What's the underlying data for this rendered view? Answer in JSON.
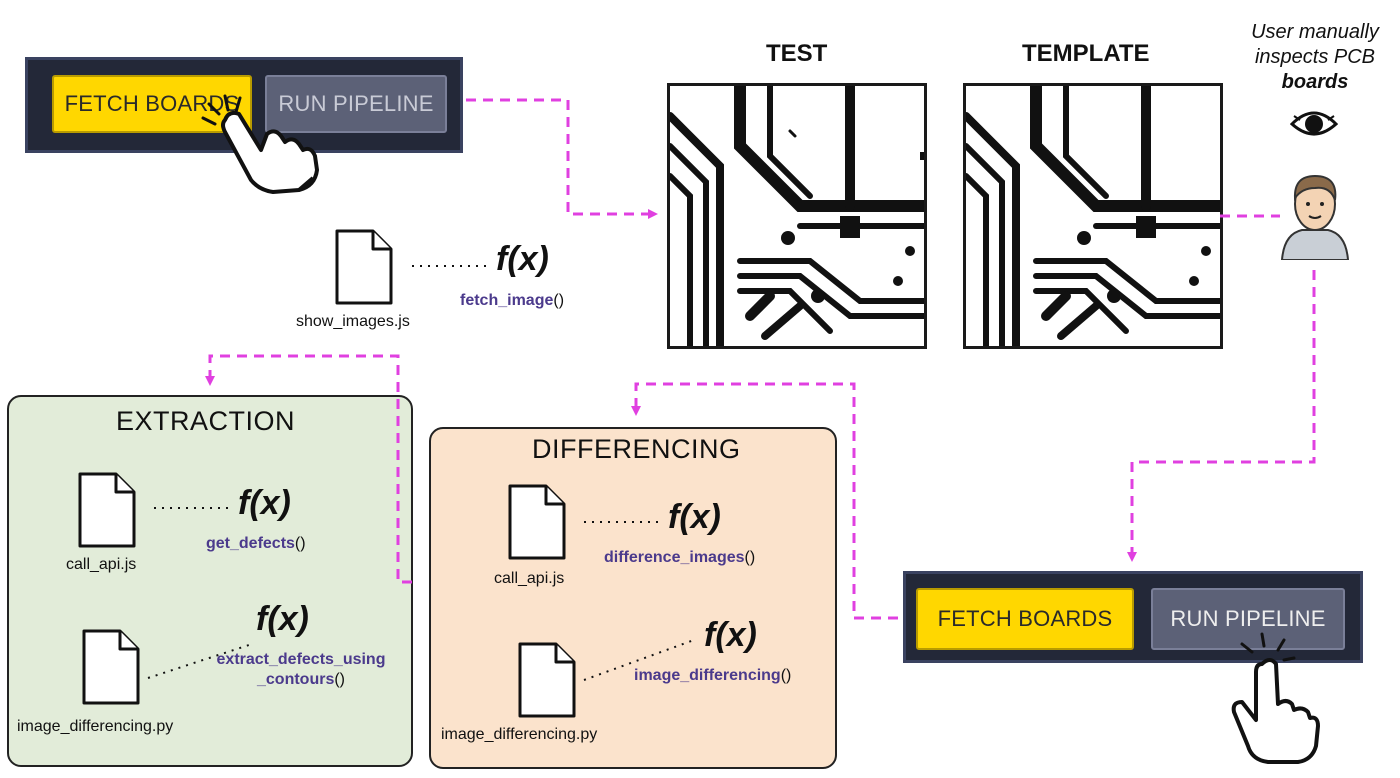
{
  "toolbar_top": {
    "fetch_label": "FETCH BOARDS",
    "run_label": "RUN PIPELINE"
  },
  "toolbar_bottom": {
    "fetch_label": "FETCH BOARDS",
    "run_label": "RUN PIPELINE"
  },
  "boards": {
    "test_title": "TEST",
    "template_title": "TEMPLATE"
  },
  "user_note": {
    "line1": "User manually",
    "line2": "inspects PCB",
    "line3": "boards"
  },
  "show_images": {
    "file": "show_images.js",
    "fx": "f(x)",
    "func": "fetch_image",
    "paren": "()"
  },
  "extraction": {
    "title": "EXTRACTION",
    "file1": "call_api.js",
    "fx1": "f(x)",
    "func1": "get_defects",
    "paren1": "()",
    "file2": "image_differencing.py",
    "fx2": "f(x)",
    "func2_line1": "extract_defects_using",
    "func2_line2": "_contours",
    "paren2": "()"
  },
  "differencing": {
    "title": "DIFFERENCING",
    "file1": "call_api.js",
    "fx1": "f(x)",
    "func1": "difference_images",
    "paren1": "()",
    "file2": "image_differencing.py",
    "fx2": "f(x)",
    "func2": "image_differencing",
    "paren2": "()"
  },
  "colors": {
    "arrow": "#e040e0",
    "fetch_button": "#ffd700",
    "run_button": "#5c6177",
    "toolbar": "#232838",
    "extraction_bg": "#e2ecd9",
    "differencing_bg": "#fbe3cc",
    "func_text": "#4b3a8c"
  },
  "icons": {
    "file": "file-icon",
    "hand": "pointing-hand-icon",
    "eye": "eye-icon",
    "user": "user-avatar-icon"
  }
}
